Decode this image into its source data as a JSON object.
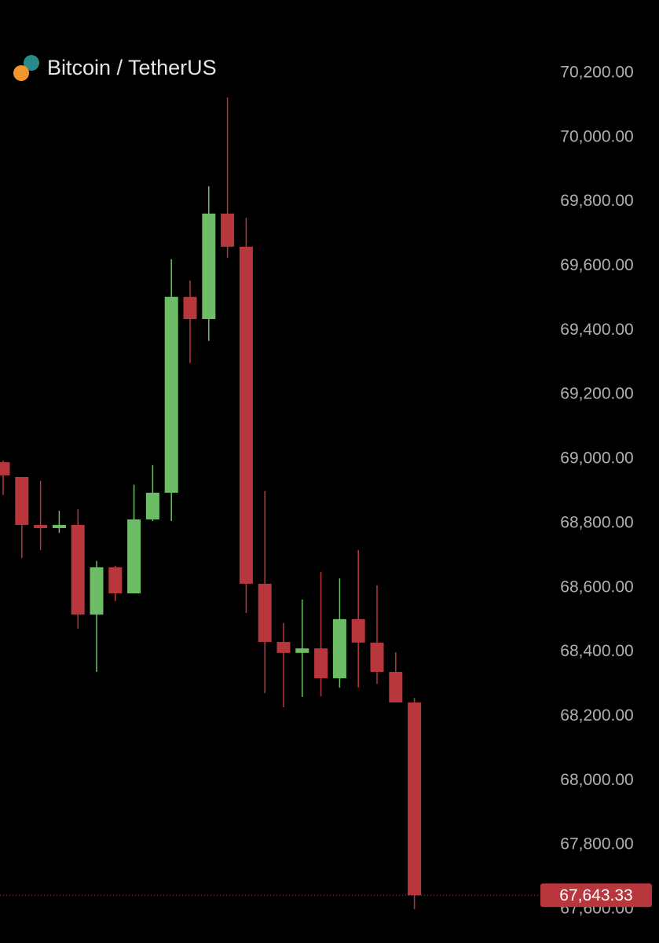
{
  "chart_data": {
    "type": "candlestick",
    "title": "Bitcoin / TetherUS",
    "open": [
      68990,
      68944,
      68795,
      68785,
      68795,
      68516,
      68663,
      68582,
      68812,
      68895,
      69504,
      69435,
      69763,
      69660,
      68612,
      68431,
      68397,
      68411,
      68318,
      68502,
      68429,
      68338,
      68243
    ],
    "high": [
      68995,
      68944,
      68932,
      68839,
      68844,
      68683,
      68668,
      68920,
      68981,
      69621,
      69555,
      69848,
      70124,
      69750,
      68900,
      68490,
      68563,
      68649,
      68629,
      68717,
      68607,
      68399,
      68257
    ],
    "low": [
      68888,
      68692,
      68717,
      68770,
      68472,
      68338,
      68558,
      68582,
      68807,
      68807,
      69298,
      69367,
      69626,
      68521,
      68272,
      68228,
      68260,
      68262,
      68289,
      68289,
      68301,
      68243,
      67600
    ],
    "close": [
      68949,
      68795,
      68785,
      68795,
      68516,
      68663,
      68582,
      68812,
      68895,
      69504,
      69435,
      69763,
      69660,
      68612,
      68431,
      68397,
      68411,
      68318,
      68502,
      68429,
      68338,
      68243,
      67643.33
    ],
    "up_color": "#6cbd65",
    "down_color": "#b8373c",
    "ylim": [
      67495,
      70427
    ],
    "yticks": [
      {
        "value": 70200,
        "label": "70,200.00"
      },
      {
        "value": 70000,
        "label": "70,000.00"
      },
      {
        "value": 69800,
        "label": "69,800.00"
      },
      {
        "value": 69600,
        "label": "69,600.00"
      },
      {
        "value": 69400,
        "label": "69,400.00"
      },
      {
        "value": 69200,
        "label": "69,200.00"
      },
      {
        "value": 69000,
        "label": "69,000.00"
      },
      {
        "value": 68800,
        "label": "68,800.00"
      },
      {
        "value": 68600,
        "label": "68,600.00"
      },
      {
        "value": 68400,
        "label": "68,400.00"
      },
      {
        "value": 68200,
        "label": "68,200.00"
      },
      {
        "value": 68000,
        "label": "68,000.00"
      },
      {
        "value": 67800,
        "label": "67,800.00"
      },
      {
        "value": 67600,
        "label": "67,600.00"
      }
    ],
    "current_price": {
      "value": 67643.33,
      "label": "67,643.33"
    }
  }
}
